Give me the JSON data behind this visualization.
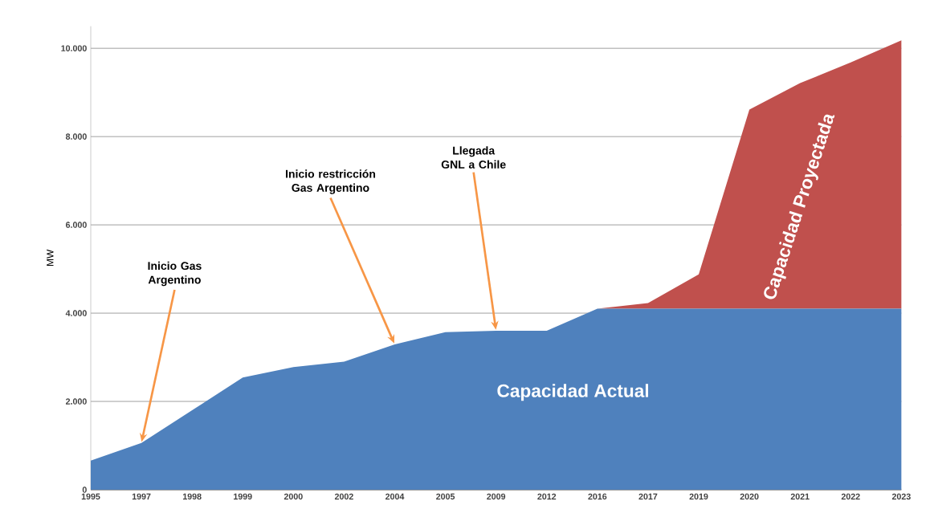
{
  "chart_data": {
    "type": "area",
    "stacked": true,
    "ylabel": "MW",
    "categories": [
      "1995",
      "1997",
      "1998",
      "1999",
      "2000",
      "2002",
      "2004",
      "2005",
      "2009",
      "2012",
      "2016",
      "2017",
      "2019",
      "2020",
      "2021",
      "2022",
      "2023"
    ],
    "series": [
      {
        "name": "Capacidad Actual",
        "color": "#4f81bd",
        "values": [
          660,
          1060,
          1800,
          2540,
          2780,
          2900,
          3290,
          3570,
          3600,
          3600,
          4100,
          4100,
          4100,
          4100,
          4100,
          4100,
          4100
        ]
      },
      {
        "name": "Capacidad Proyectada",
        "color": "#c0504d",
        "values": [
          0,
          0,
          0,
          0,
          0,
          0,
          0,
          0,
          0,
          0,
          0,
          130,
          780,
          4510,
          5110,
          5580,
          6080
        ]
      }
    ],
    "ylim": [
      0,
      10500
    ],
    "yticks": [
      {
        "value": 0,
        "label": "0"
      },
      {
        "value": 2000,
        "label": "2.000"
      },
      {
        "value": 4000,
        "label": "4.000"
      },
      {
        "value": 6000,
        "label": "6.000"
      },
      {
        "value": 8000,
        "label": "8.000"
      },
      {
        "value": 10000,
        "label": "10.000"
      }
    ],
    "grid": "y",
    "legend": false,
    "annotations": [
      {
        "text": "Inicio Gas Argentino",
        "x": "1997",
        "y": 1060
      },
      {
        "text": "Inicio restricción Gas Argentino",
        "x": "2004",
        "y": 3290
      },
      {
        "text": "Llegada GNL a Chile",
        "x": "2009",
        "y": 3600
      }
    ]
  }
}
